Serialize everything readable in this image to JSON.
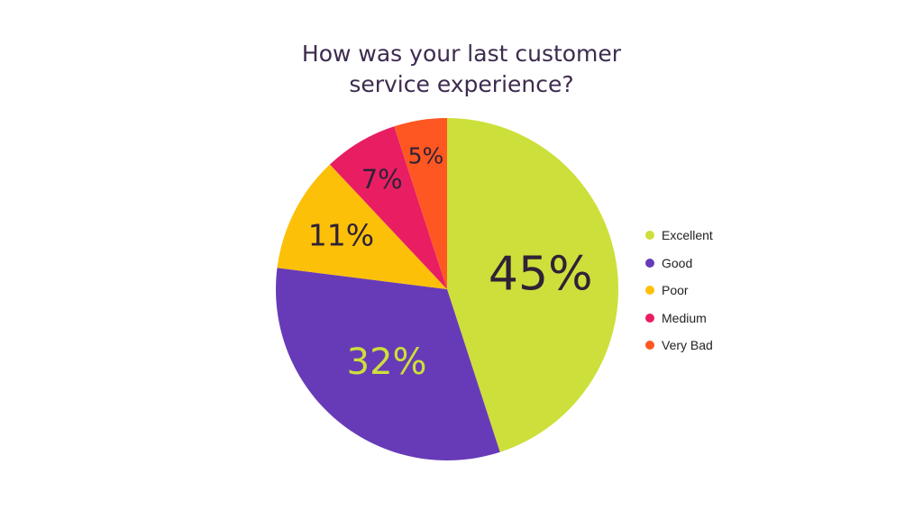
{
  "chart_data": {
    "type": "pie",
    "title_lines": [
      "How was your last customer",
      "service experience?"
    ],
    "slices": [
      {
        "label": "Excellent",
        "value": 45,
        "display": "45%",
        "color": "#cddf3a",
        "text_color": "#2e2236"
      },
      {
        "label": "Good",
        "value": 32,
        "display": "32%",
        "color": "#673bb7",
        "text_color": "#cddf3a"
      },
      {
        "label": "Poor",
        "value": 11,
        "display": "11%",
        "color": "#fdc009",
        "text_color": "#2e2236"
      },
      {
        "label": "Medium",
        "value": 7,
        "display": "7%",
        "color": "#e91e62",
        "text_color": "#2e2236"
      },
      {
        "label": "Very Bad",
        "value": 5,
        "display": "5%",
        "color": "#fe5722",
        "text_color": "#2e2236"
      }
    ],
    "legend_position": "right"
  }
}
